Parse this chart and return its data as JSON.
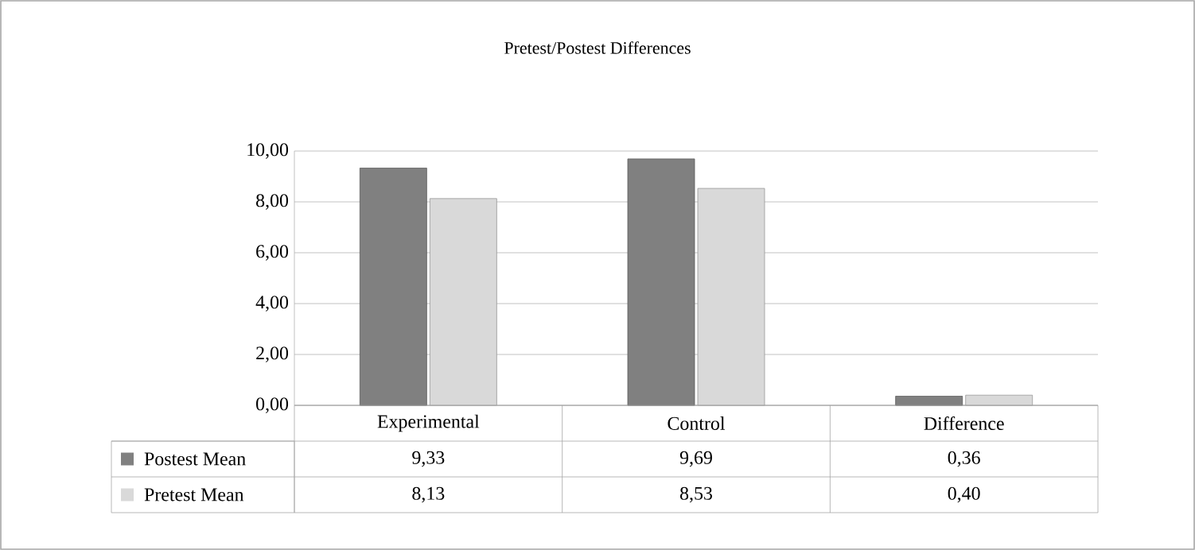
{
  "chart_data": {
    "type": "bar",
    "title": "Pretest/Postest Differences",
    "categories": [
      "Experimental",
      "Control",
      "Difference"
    ],
    "series": [
      {
        "name": "Postest Mean",
        "color": "#808080",
        "values": [
          9.33,
          9.69,
          0.36
        ],
        "value_labels": [
          "9,33",
          "9,69",
          "0,36"
        ]
      },
      {
        "name": "Pretest Mean",
        "color": "#d9d9d9",
        "values": [
          8.13,
          8.53,
          0.4
        ],
        "value_labels": [
          "8,13",
          "8,53",
          "0,40"
        ]
      }
    ],
    "ylim": [
      0,
      10
    ],
    "yticks": [
      {
        "value": 0,
        "label": "0,00"
      },
      {
        "value": 2,
        "label": "2,00"
      },
      {
        "value": 4,
        "label": "4,00"
      },
      {
        "value": 6,
        "label": "6,00"
      },
      {
        "value": 8,
        "label": "8,00"
      },
      {
        "value": 10,
        "label": "10,00"
      }
    ],
    "grid": "y",
    "legend": "bottom left"
  }
}
